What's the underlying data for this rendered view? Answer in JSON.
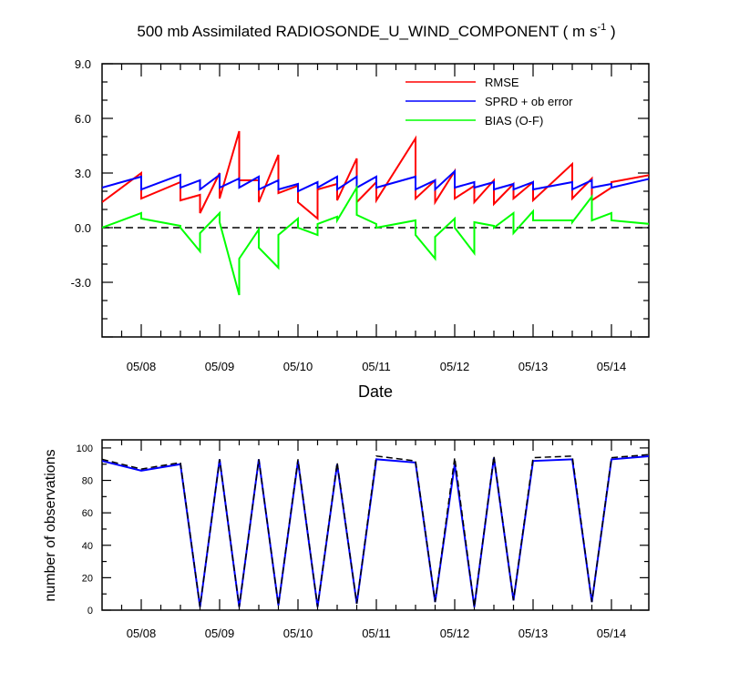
{
  "chart_data": [
    {
      "type": "line",
      "title": "500 mb Assimilated RADIOSONDE_U_WIND_COMPONENT ( m s",
      "title_superscript": "-1",
      "title_close": " )",
      "xlabel": "Date",
      "ylabel": "",
      "x_ticks": [
        "05/08",
        "05/09",
        "05/10",
        "05/11",
        "05/12",
        "05/13",
        "05/14"
      ],
      "x_range": [
        0,
        7
      ],
      "ylim": [
        -6.0,
        9.0
      ],
      "y_ticks": [
        "9.0",
        "6.0",
        "3.0",
        "0.0",
        "-3.0"
      ],
      "y_tick_values": [
        9.0,
        6.0,
        3.0,
        0.0,
        -3.0
      ],
      "reference_line": {
        "y": 0.0,
        "style": "dashed",
        "color": "#000000"
      },
      "legend_position": "top-right",
      "series": [
        {
          "name": "RMSE",
          "color": "#ff0000",
          "x": [
            -0.5,
            0,
            0,
            0.5,
            0.5,
            0.75,
            0.75,
            1.0,
            1.0,
            1.25,
            1.25,
            1.5,
            1.5,
            1.75,
            1.75,
            2.0,
            2.0,
            2.25,
            2.25,
            2.5,
            2.5,
            2.75,
            2.75,
            3.0,
            3.0,
            3.5,
            3.5,
            3.75,
            3.75,
            4.0,
            4.0,
            4.25,
            4.25,
            4.5,
            4.5,
            4.75,
            4.75,
            5.0,
            5.0,
            5.5,
            5.5,
            5.75,
            5.75,
            6.0,
            6.0,
            6.5
          ],
          "y": [
            1.4,
            3.0,
            1.6,
            2.5,
            1.5,
            1.8,
            0.8,
            3.0,
            1.6,
            5.3,
            2.6,
            2.6,
            1.4,
            4.0,
            1.9,
            2.3,
            1.4,
            0.5,
            2.1,
            2.4,
            1.5,
            3.8,
            1.4,
            2.5,
            1.5,
            4.9,
            1.6,
            2.6,
            1.4,
            3.1,
            1.6,
            2.3,
            1.4,
            2.6,
            1.3,
            2.4,
            1.6,
            2.5,
            1.5,
            3.5,
            1.6,
            2.7,
            1.5,
            2.2,
            2.5,
            2.9
          ]
        },
        {
          "name": "SPRD + ob error",
          "color": "#0000ff",
          "x": [
            -0.5,
            0,
            0,
            0.5,
            0.5,
            0.75,
            0.75,
            1.0,
            1.0,
            1.25,
            1.25,
            1.5,
            1.5,
            1.75,
            1.75,
            2.0,
            2.0,
            2.25,
            2.25,
            2.5,
            2.5,
            2.75,
            2.75,
            3.0,
            3.0,
            3.5,
            3.5,
            3.75,
            3.75,
            4.0,
            4.0,
            4.25,
            4.25,
            4.5,
            4.5,
            4.75,
            4.75,
            5.0,
            5.0,
            5.5,
            5.5,
            5.75,
            5.75,
            6.0,
            6.0,
            6.5
          ],
          "y": [
            2.2,
            2.8,
            2.1,
            2.9,
            2.2,
            2.6,
            2.1,
            2.9,
            2.2,
            2.7,
            2.2,
            2.8,
            2.1,
            2.6,
            2.1,
            2.4,
            2.0,
            2.5,
            2.2,
            2.8,
            2.1,
            2.8,
            2.2,
            2.8,
            2.2,
            2.8,
            2.1,
            2.6,
            2.1,
            3.1,
            2.2,
            2.5,
            2.2,
            2.5,
            2.1,
            2.4,
            2.1,
            2.5,
            2.1,
            2.5,
            2.1,
            2.6,
            2.2,
            2.4,
            2.2,
            2.7
          ]
        },
        {
          "name": "BIAS (O-F)",
          "color": "#00ff00",
          "x": [
            -0.5,
            0,
            0,
            0.5,
            0.5,
            0.75,
            0.75,
            1.0,
            1.0,
            1.25,
            1.25,
            1.5,
            1.5,
            1.75,
            1.75,
            2.0,
            2.0,
            2.25,
            2.25,
            2.5,
            2.5,
            2.75,
            2.75,
            3.0,
            3.0,
            3.5,
            3.5,
            3.75,
            3.75,
            4.0,
            4.0,
            4.25,
            4.25,
            4.5,
            4.5,
            4.75,
            4.75,
            5.0,
            5.0,
            5.5,
            5.5,
            5.75,
            5.75,
            6.0,
            6.0,
            6.5
          ],
          "y": [
            0.0,
            0.8,
            0.5,
            0.1,
            0.0,
            -1.3,
            -0.3,
            0.8,
            0.3,
            -3.7,
            -1.7,
            -0.1,
            -1.1,
            -2.2,
            -0.4,
            0.5,
            0.0,
            -0.4,
            0.2,
            0.6,
            0.4,
            2.2,
            0.7,
            0.2,
            0.0,
            0.4,
            -0.4,
            -1.7,
            -0.5,
            0.5,
            0.0,
            -1.4,
            0.3,
            0.1,
            0.0,
            0.8,
            -0.3,
            0.9,
            0.4,
            0.4,
            0.3,
            1.7,
            0.4,
            0.8,
            0.4,
            0.2
          ]
        }
      ]
    },
    {
      "type": "line",
      "title": "",
      "xlabel": "",
      "ylabel": "number of observations",
      "x_ticks": [
        "05/08",
        "05/09",
        "05/10",
        "05/11",
        "05/12",
        "05/13",
        "05/14"
      ],
      "x_range": [
        0,
        7
      ],
      "ylim": [
        0,
        105
      ],
      "y_ticks": [
        "100",
        "80",
        "60",
        "40",
        "20",
        "0"
      ],
      "y_tick_values": [
        100,
        80,
        60,
        40,
        20,
        0
      ],
      "series": [
        {
          "color": "#0000ff",
          "style": "solid",
          "x": [
            -0.5,
            0,
            0.5,
            0.75,
            1.0,
            1.25,
            1.5,
            1.75,
            2.0,
            2.25,
            2.5,
            2.75,
            3.0,
            3.5,
            3.75,
            4.0,
            4.25,
            4.5,
            4.75,
            5.0,
            5.5,
            5.75,
            6.0,
            6.5
          ],
          "y": [
            92,
            86,
            90,
            2,
            93,
            2,
            93,
            3,
            92,
            2,
            90,
            4,
            93,
            91,
            5,
            90,
            2,
            94,
            6,
            92,
            93,
            5,
            93,
            95
          ]
        },
        {
          "color": "#000000",
          "style": "dashed",
          "x": [
            -0.5,
            0,
            0.5,
            0.75,
            1.0,
            1.25,
            1.5,
            1.75,
            2.0,
            2.25,
            2.5,
            2.75,
            3.0,
            3.5,
            3.75,
            4.0,
            4.25,
            4.5,
            4.75,
            5.0,
            5.5,
            5.75,
            6.0,
            6.5
          ],
          "y": [
            93,
            87,
            91,
            2,
            93,
            2,
            93,
            3,
            93,
            2,
            91,
            4,
            95,
            92,
            5,
            94,
            2,
            95,
            6,
            94,
            95,
            5,
            94,
            96
          ]
        }
      ]
    }
  ]
}
